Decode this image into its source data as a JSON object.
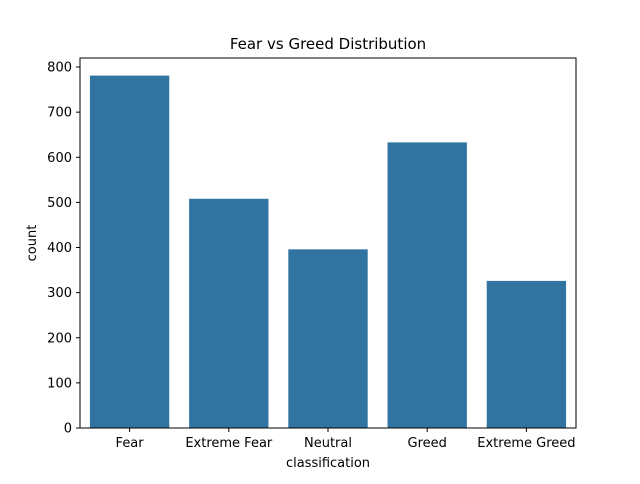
{
  "chart_data": {
    "type": "bar",
    "title": "Fear vs Greed Distribution",
    "xlabel": "classification",
    "ylabel": "count",
    "categories": [
      "Fear",
      "Extreme Fear",
      "Neutral",
      "Greed",
      "Extreme Greed"
    ],
    "values": [
      781,
      508,
      396,
      633,
      326
    ],
    "ylim": [
      0,
      820
    ],
    "yticks": [
      0,
      100,
      200,
      300,
      400,
      500,
      600,
      700,
      800
    ],
    "bar_color": "#3274a1",
    "grid": false,
    "legend": "none"
  }
}
